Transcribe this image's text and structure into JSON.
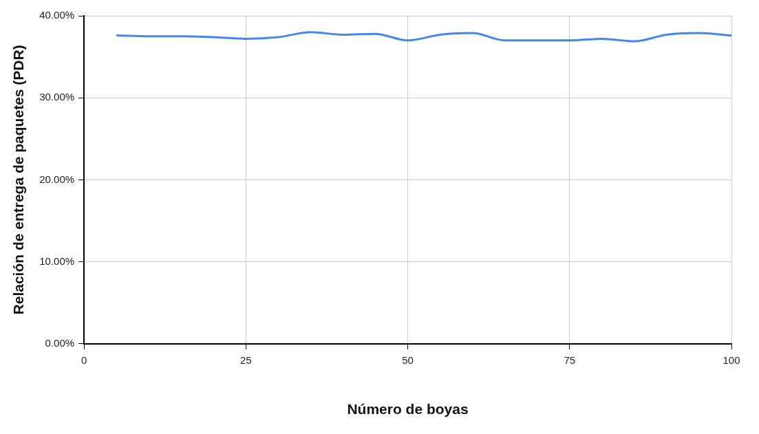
{
  "chart_data": {
    "type": "line",
    "xlabel": "Número de boyas",
    "ylabel": "Relación de entrega de paquetes (PDR)",
    "x": [
      5,
      10,
      15,
      20,
      25,
      30,
      35,
      40,
      45,
      50,
      55,
      60,
      65,
      70,
      75,
      80,
      85,
      90,
      95,
      100
    ],
    "series": [
      {
        "color": "#4285f4",
        "values": [
          37.6,
          37.5,
          37.5,
          37.4,
          37.2,
          37.4,
          38.0,
          37.7,
          37.8,
          37.0,
          37.7,
          37.9,
          37.0,
          37.0,
          37.0,
          37.2,
          36.9,
          37.7,
          37.9,
          37.6
        ]
      }
    ],
    "xlim": [
      0,
      100
    ],
    "xticks": [
      0,
      25,
      50,
      75,
      100
    ],
    "ylim": [
      0,
      40
    ],
    "yticks": [
      {
        "value": 0,
        "label": "0.00%"
      },
      {
        "value": 10,
        "label": "10.00%"
      },
      {
        "value": 20,
        "label": "20.00%"
      },
      {
        "value": 30,
        "label": "30.00%"
      },
      {
        "value": 40,
        "label": "40.00%"
      }
    ],
    "grid": true,
    "legend": false,
    "marker": "none",
    "line_style": "solid"
  }
}
